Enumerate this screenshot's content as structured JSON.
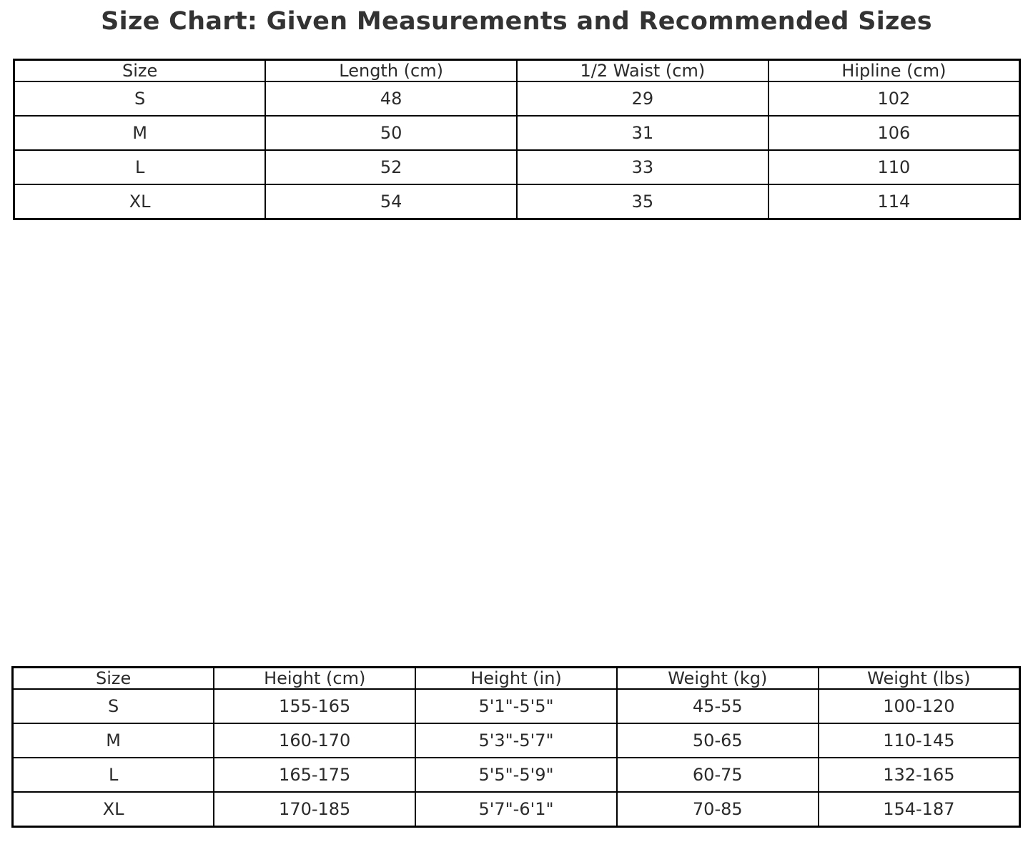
{
  "title": "Size Chart: Given Measurements and Recommended Sizes",
  "colors": {
    "background": "#ffffff",
    "border": "#000000",
    "title_text": "#333333",
    "table_text": "#2b2b2b"
  },
  "chart_data": [
    {
      "type": "table",
      "name": "garment_measurements",
      "title": "Size Chart: Given Measurements and Recommended Sizes",
      "columns": [
        "Size",
        "Length (cm)",
        "1/2 Waist (cm)",
        "Hipline (cm)"
      ],
      "rows": [
        [
          "S",
          48,
          29,
          102
        ],
        [
          "M",
          50,
          31,
          106
        ],
        [
          "L",
          52,
          33,
          110
        ],
        [
          "XL",
          54,
          35,
          114
        ]
      ]
    },
    {
      "type": "table",
      "name": "recommended_sizes",
      "columns": [
        "Size",
        "Height (cm)",
        "Height (in)",
        "Weight (kg)",
        "Weight (lbs)"
      ],
      "rows": [
        [
          "S",
          "155-165",
          "5'1\"-5'5\"",
          "45-55",
          "100-120"
        ],
        [
          "M",
          "160-170",
          "5'3\"-5'7\"",
          "50-65",
          "110-145"
        ],
        [
          "L",
          "165-175",
          "5'5\"-5'9\"",
          "60-75",
          "132-165"
        ],
        [
          "XL",
          "170-185",
          "5'7\"-6'1\"",
          "70-85",
          "154-187"
        ]
      ]
    }
  ]
}
